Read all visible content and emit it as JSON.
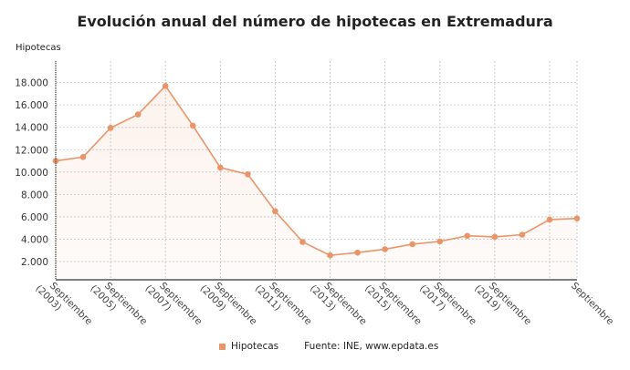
{
  "chart_data": {
    "type": "area",
    "title": "Evolución anual del número de hipotecas en Extremadura",
    "ylabel": "Hipotecas",
    "x": [
      2003,
      2004,
      2005,
      2006,
      2007,
      2008,
      2009,
      2010,
      2011,
      2012,
      2013,
      2014,
      2015,
      2016,
      2017,
      2018,
      2019,
      2020,
      2021,
      2022
    ],
    "x_tick_labels": [
      {
        "x": 2003,
        "label": [
          "Septiembre",
          "(2003)"
        ]
      },
      {
        "x": 2005,
        "label": [
          "Septiembre",
          "(2005)"
        ]
      },
      {
        "x": 2007,
        "label": [
          "Septiembre",
          "(2007)"
        ]
      },
      {
        "x": 2009,
        "label": [
          "Septiembre",
          "(2009)"
        ]
      },
      {
        "x": 2011,
        "label": [
          "Septiembre",
          "(2011)"
        ]
      },
      {
        "x": 2013,
        "label": [
          "Septiembre",
          "(2013)"
        ]
      },
      {
        "x": 2015,
        "label": [
          "Septiembre",
          "(2015)"
        ]
      },
      {
        "x": 2017,
        "label": [
          "Septiembre",
          "(2017)"
        ]
      },
      {
        "x": 2019,
        "label": [
          "Septiembre",
          "(2019)"
        ]
      },
      {
        "x": 2022,
        "label": [
          "Septiembre"
        ]
      }
    ],
    "series": [
      {
        "name": "Hipotecas",
        "color": "#e8956a",
        "values": [
          11000,
          11350,
          13950,
          15150,
          17700,
          14150,
          10400,
          9800,
          6500,
          3750,
          2550,
          2800,
          3100,
          3550,
          3800,
          4300,
          4200,
          4400,
          5750,
          5850
        ]
      }
    ],
    "yticks": [
      2000,
      4000,
      6000,
      8000,
      10000,
      12000,
      14000,
      16000,
      18000
    ],
    "ytick_labels": [
      "2.000",
      "4.000",
      "6.000",
      "8.000",
      "10.000",
      "12.000",
      "14.000",
      "16.000",
      "18.000"
    ],
    "ylim": [
      0,
      20000
    ],
    "grid": true,
    "legend": "bottom"
  },
  "footer": {
    "legend_label": "Hipotecas",
    "source": "Fuente: INE, www.epdata.es"
  }
}
